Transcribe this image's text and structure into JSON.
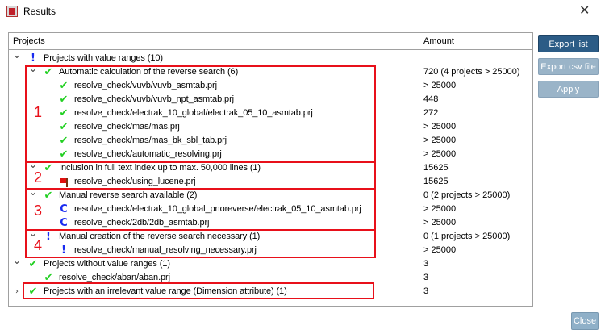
{
  "window": {
    "title": "Results",
    "close_glyph": "✕"
  },
  "table": {
    "headers": {
      "projects": "Projects",
      "amount": "Amount"
    },
    "rows": [
      {
        "level": 0,
        "chevron": "down",
        "icon": "exclamation",
        "label": "Projects with value ranges (10)",
        "amount": ""
      },
      {
        "level": 1,
        "chevron": "down",
        "icon": "check",
        "label": "Automatic calculation of the reverse search (6)",
        "amount": "720 (4 projects > 25000)"
      },
      {
        "level": 2,
        "chevron": "",
        "icon": "check",
        "label": "resolve_check/vuvb/vuvb_asmtab.prj",
        "amount": "> 25000"
      },
      {
        "level": 2,
        "chevron": "",
        "icon": "check",
        "label": "resolve_check/vuvb/vuvb_npt_asmtab.prj",
        "amount": "448"
      },
      {
        "level": 2,
        "chevron": "",
        "icon": "check",
        "label": "resolve_check/electrak_10_global/electrak_05_10_asmtab.prj",
        "amount": "272"
      },
      {
        "level": 2,
        "chevron": "",
        "icon": "check",
        "label": "resolve_check/mas/mas.prj",
        "amount": "> 25000"
      },
      {
        "level": 2,
        "chevron": "",
        "icon": "check",
        "label": "resolve_check/mas/mas_bk_sbl_tab.prj",
        "amount": "> 25000"
      },
      {
        "level": 2,
        "chevron": "",
        "icon": "check",
        "label": "resolve_check/automatic_resolving.prj",
        "amount": "> 25000"
      },
      {
        "level": 1,
        "chevron": "down",
        "icon": "check",
        "label": "Inclusion in full text index up to max. 50,000 lines (1)",
        "amount": "15625"
      },
      {
        "level": 2,
        "chevron": "",
        "icon": "flag",
        "label": "resolve_check/using_lucene.prj",
        "amount": "15625"
      },
      {
        "level": 1,
        "chevron": "down",
        "icon": "check",
        "label": "Manual reverse search available (2)",
        "amount": "0 (2 projects > 25000)"
      },
      {
        "level": 2,
        "chevron": "",
        "icon": "cycle",
        "label": "resolve_check/electrak_10_global_pnoreverse/electrak_05_10_asmtab.prj",
        "amount": "> 25000"
      },
      {
        "level": 2,
        "chevron": "",
        "icon": "cycle",
        "label": "resolve_check/2db/2db_asmtab.prj",
        "amount": "> 25000"
      },
      {
        "level": 1,
        "chevron": "down",
        "icon": "exclamation",
        "label": "Manual creation of the reverse search necessary (1)",
        "amount": "0 (1 projects > 25000)"
      },
      {
        "level": 2,
        "chevron": "",
        "icon": "exclamation",
        "label": "resolve_check/manual_resolving_necessary.prj",
        "amount": "> 25000"
      },
      {
        "level": 0,
        "chevron": "down",
        "icon": "check",
        "label": "Projects without value ranges (1)",
        "amount": "3"
      },
      {
        "level": 1,
        "chevron": "",
        "icon": "check",
        "label": "resolve_check/aban/aban.prj",
        "amount": "3"
      },
      {
        "level": 0,
        "chevron": "right",
        "icon": "check",
        "label": "Projects with an irrelevant value range (Dimension attribute) (1)",
        "amount": "3"
      }
    ]
  },
  "annotations": [
    "1",
    "2",
    "3",
    "4"
  ],
  "buttons": {
    "export_list": "Export list",
    "export_csv": "Export csv file",
    "apply": "Apply",
    "close": "Close"
  },
  "colors": {
    "highlight": "#e8101a",
    "check": "#22d022",
    "info": "#1a2cf0",
    "primary_button": "#2c5c86",
    "disabled_button": "#9ab4c8"
  }
}
